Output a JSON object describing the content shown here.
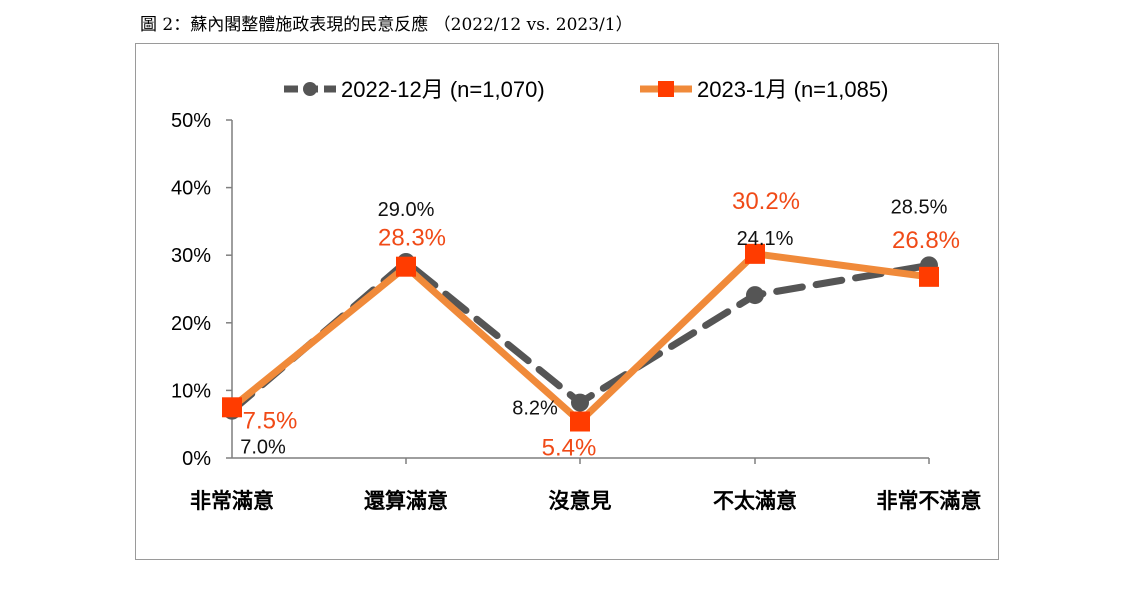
{
  "caption": "圖 2：蘇內閣整體施政表現的民意反應 （2022/12 vs. 2023/1）",
  "chart_data": {
    "type": "line",
    "title": "圖 2：蘇內閣整體施政表現的民意反應 （2022/12 vs. 2023/1）",
    "categories": [
      "非常滿意",
      "還算滿意",
      "沒意見",
      "不太滿意",
      "非常不滿意"
    ],
    "series": [
      {
        "name": "2022-12月  (n=1,070)",
        "values": [
          7.0,
          29.0,
          8.2,
          24.1,
          28.5
        ],
        "labels": [
          "7.0%",
          "29.0%",
          "8.2%",
          "24.1%",
          "28.5%"
        ],
        "color": "#555555",
        "style": "dashed",
        "marker": "circle"
      },
      {
        "name": "2023-1月  (n=1,085)",
        "values": [
          7.5,
          28.3,
          5.4,
          30.2,
          26.8
        ],
        "labels": [
          "7.5%",
          "28.3%",
          "5.4%",
          "30.2%",
          "26.8%"
        ],
        "color": "#f08a3a",
        "style": "solid",
        "marker": "square",
        "marker_color": "#ff3c00",
        "label_color": "#f04a17"
      }
    ],
    "yticks": [
      "0%",
      "10%",
      "20%",
      "30%",
      "40%",
      "50%"
    ],
    "ylim": [
      0,
      50
    ],
    "grid": false,
    "legend_position": "top-center"
  }
}
